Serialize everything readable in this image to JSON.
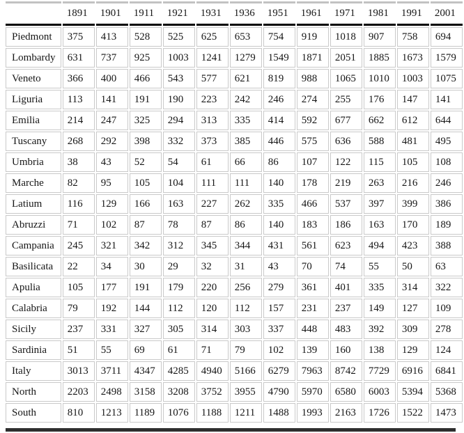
{
  "table": {
    "corner_label": "",
    "columns": [
      "1891",
      "1901",
      "1911",
      "1921",
      "1931",
      "1936",
      "1951",
      "1961",
      "1971",
      "1981",
      "1991",
      "2001"
    ],
    "rows": [
      {
        "label": "Piedmont",
        "values": [
          "375",
          "413",
          "528",
          "525",
          "625",
          "653",
          "754",
          "919",
          "1018",
          "907",
          "758",
          "694"
        ]
      },
      {
        "label": "Lombardy",
        "values": [
          "631",
          "737",
          "925",
          "1003",
          "1241",
          "1279",
          "1549",
          "1871",
          "2051",
          "1885",
          "1673",
          "1579"
        ]
      },
      {
        "label": "Veneto",
        "values": [
          "366",
          "400",
          "466",
          "543",
          "577",
          "621",
          "819",
          "988",
          "1065",
          "1010",
          "1003",
          "1075"
        ]
      },
      {
        "label": "Liguria",
        "values": [
          "113",
          "141",
          "191",
          "190",
          "223",
          "242",
          "246",
          "274",
          "255",
          "176",
          "147",
          "141"
        ]
      },
      {
        "label": "Emilia",
        "values": [
          "214",
          "247",
          "325",
          "294",
          "313",
          "335",
          "414",
          "592",
          "677",
          "662",
          "612",
          "644"
        ]
      },
      {
        "label": "Tuscany",
        "values": [
          "268",
          "292",
          "398",
          "332",
          "373",
          "385",
          "446",
          "575",
          "636",
          "588",
          "481",
          "495"
        ]
      },
      {
        "label": "Umbria",
        "values": [
          "38",
          "43",
          "52",
          "54",
          "61",
          "66",
          "86",
          "107",
          "122",
          "115",
          "105",
          "108"
        ]
      },
      {
        "label": "Marche",
        "values": [
          "82",
          "95",
          "105",
          "104",
          "111",
          "111",
          "140",
          "178",
          "219",
          "263",
          "216",
          "246"
        ]
      },
      {
        "label": "Latium",
        "values": [
          "116",
          "129",
          "166",
          "163",
          "227",
          "262",
          "335",
          "466",
          "537",
          "397",
          "399",
          "386"
        ]
      },
      {
        "label": "Abruzzi",
        "values": [
          "71",
          "102",
          "87",
          "78",
          "87",
          "86",
          "140",
          "183",
          "186",
          "163",
          "170",
          "189"
        ]
      },
      {
        "label": "Campania",
        "values": [
          "245",
          "321",
          "342",
          "312",
          "345",
          "344",
          "431",
          "561",
          "623",
          "494",
          "423",
          "388"
        ]
      },
      {
        "label": "Basilicata",
        "values": [
          "22",
          "34",
          "30",
          "29",
          "32",
          "31",
          "43",
          "70",
          "74",
          "55",
          "50",
          "63"
        ]
      },
      {
        "label": "Apulia",
        "values": [
          "105",
          "177",
          "191",
          "179",
          "220",
          "256",
          "279",
          "361",
          "401",
          "335",
          "314",
          "322"
        ]
      },
      {
        "label": "Calabria",
        "values": [
          "79",
          "192",
          "144",
          "112",
          "120",
          "112",
          "157",
          "231",
          "237",
          "149",
          "127",
          "109"
        ]
      },
      {
        "label": "Sicily",
        "values": [
          "237",
          "331",
          "327",
          "305",
          "314",
          "303",
          "337",
          "448",
          "483",
          "392",
          "309",
          "278"
        ]
      },
      {
        "label": "Sardinia",
        "values": [
          "51",
          "55",
          "69",
          "61",
          "71",
          "79",
          "102",
          "139",
          "160",
          "138",
          "129",
          "124"
        ]
      },
      {
        "label": "Italy",
        "values": [
          "3013",
          "3711",
          "4347",
          "4285",
          "4940",
          "5166",
          "6279",
          "7963",
          "8742",
          "7729",
          "6916",
          "6841"
        ]
      },
      {
        "label": "North",
        "values": [
          "2203",
          "2498",
          "3158",
          "3208",
          "3752",
          "3955",
          "4790",
          "5970",
          "6580",
          "6003",
          "5394",
          "5368"
        ]
      },
      {
        "label": "South",
        "values": [
          "810",
          "1213",
          "1189",
          "1076",
          "1188",
          "1211",
          "1488",
          "1993",
          "2163",
          "1726",
          "1522",
          "1473"
        ]
      }
    ]
  },
  "styles": {
    "grid_color": "#c9c9c9",
    "header_rule_color": "#000000",
    "top_rule_color": "#c2c2c2",
    "bottom_rule_color": "#2e2e2e",
    "text_color": "#161616",
    "background": "#ffffff"
  }
}
